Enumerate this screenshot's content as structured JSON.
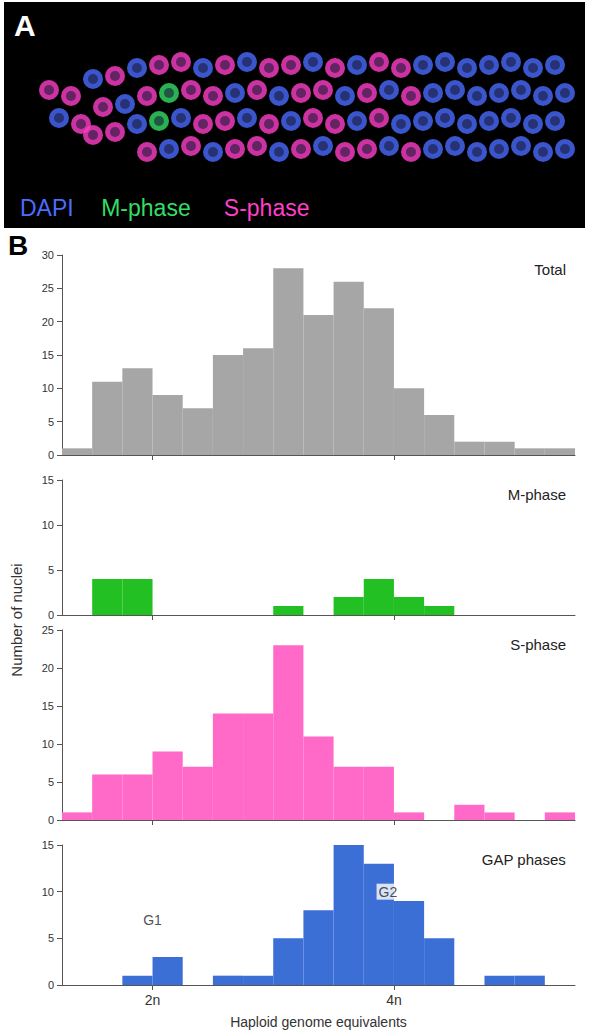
{
  "panel_a": {
    "letter": "A",
    "labels": [
      {
        "text": "DAPI",
        "color": "#4a6cff"
      },
      {
        "text": "M-phase",
        "color": "#33dd66"
      },
      {
        "text": "S-phase",
        "color": "#ff3fc8"
      }
    ]
  },
  "panel_b": {
    "letter": "B",
    "ylabel": "Number of nuclei"
  },
  "chart_data": [
    {
      "type": "histogram",
      "title": "Total",
      "bins": [
        1.25,
        1.5,
        1.75,
        2.0,
        2.25,
        2.5,
        2.75,
        3.0,
        3.25,
        3.5,
        3.75,
        4.0,
        4.25,
        4.5,
        4.75,
        5.0,
        5.25,
        5.5
      ],
      "values": [
        1,
        11,
        13,
        9,
        7,
        15,
        16,
        28,
        21,
        26,
        22,
        10,
        6,
        2,
        2,
        1,
        1
      ],
      "color": "#a6a6a6",
      "xlim": [
        1.25,
        5.5
      ],
      "xticks": [
        {
          "value": 2,
          "label": "2n"
        },
        {
          "value": 4,
          "label": "4n"
        }
      ],
      "ylim": [
        0,
        30
      ],
      "yticks": [
        0,
        5,
        10,
        15,
        20,
        25,
        30
      ],
      "grid": false,
      "tick_labels": "y"
    },
    {
      "type": "histogram",
      "title": "M-phase",
      "bins": [
        1.25,
        1.5,
        1.75,
        2.0,
        2.25,
        2.5,
        2.75,
        3.0,
        3.25,
        3.5,
        3.75,
        4.0,
        4.25,
        4.5,
        4.75,
        5.0,
        5.25,
        5.5
      ],
      "values": [
        0,
        4,
        4,
        0,
        0,
        0,
        0,
        1,
        0,
        2,
        4,
        2,
        1,
        0,
        0,
        0,
        0
      ],
      "color": "#22c022",
      "xlim": [
        1.25,
        5.5
      ],
      "xticks": [
        {
          "value": 2,
          "label": "2n"
        },
        {
          "value": 4,
          "label": "4n"
        }
      ],
      "ylim": [
        0,
        15
      ],
      "yticks": [
        0,
        5,
        10,
        15
      ],
      "grid": false,
      "tick_labels": "y"
    },
    {
      "type": "histogram",
      "title": "S-phase",
      "bins": [
        1.25,
        1.5,
        1.75,
        2.0,
        2.25,
        2.5,
        2.75,
        3.0,
        3.25,
        3.5,
        3.75,
        4.0,
        4.25,
        4.5,
        4.75,
        5.0,
        5.25,
        5.5
      ],
      "values": [
        1,
        6,
        6,
        9,
        7,
        14,
        14,
        23,
        11,
        7,
        7,
        1,
        0,
        2,
        1,
        0,
        1
      ],
      "color": "#ff69c8",
      "xlim": [
        1.25,
        5.5
      ],
      "xticks": [
        {
          "value": 2,
          "label": "2n"
        },
        {
          "value": 4,
          "label": "4n"
        }
      ],
      "ylim": [
        0,
        25
      ],
      "yticks": [
        0,
        5,
        10,
        15,
        20,
        25
      ],
      "grid": false,
      "tick_labels": "y"
    },
    {
      "type": "histogram",
      "title": "GAP phases",
      "bins": [
        1.25,
        1.5,
        1.75,
        2.0,
        2.25,
        2.5,
        2.75,
        3.0,
        3.25,
        3.5,
        3.75,
        4.0,
        4.25,
        4.5,
        4.75,
        5.0,
        5.25,
        5.5
      ],
      "values": [
        0,
        0,
        1,
        3,
        0,
        1,
        1,
        5,
        8,
        15,
        13,
        9,
        5,
        0,
        1,
        1,
        0
      ],
      "color": "#3b6fd6",
      "xlim": [
        1.25,
        5.5
      ],
      "xticks": [
        {
          "value": 2,
          "label": "2n"
        },
        {
          "value": 4,
          "label": "4n"
        }
      ],
      "ylim": [
        0,
        15
      ],
      "yticks": [
        0,
        5,
        10,
        15
      ],
      "grid": false,
      "xlabel": "Haploid genome equivalents",
      "annotations": [
        {
          "text": "G1",
          "x": 2.0,
          "y": 7
        },
        {
          "text": "G2",
          "x": 3.95,
          "y": 10
        }
      ]
    }
  ]
}
